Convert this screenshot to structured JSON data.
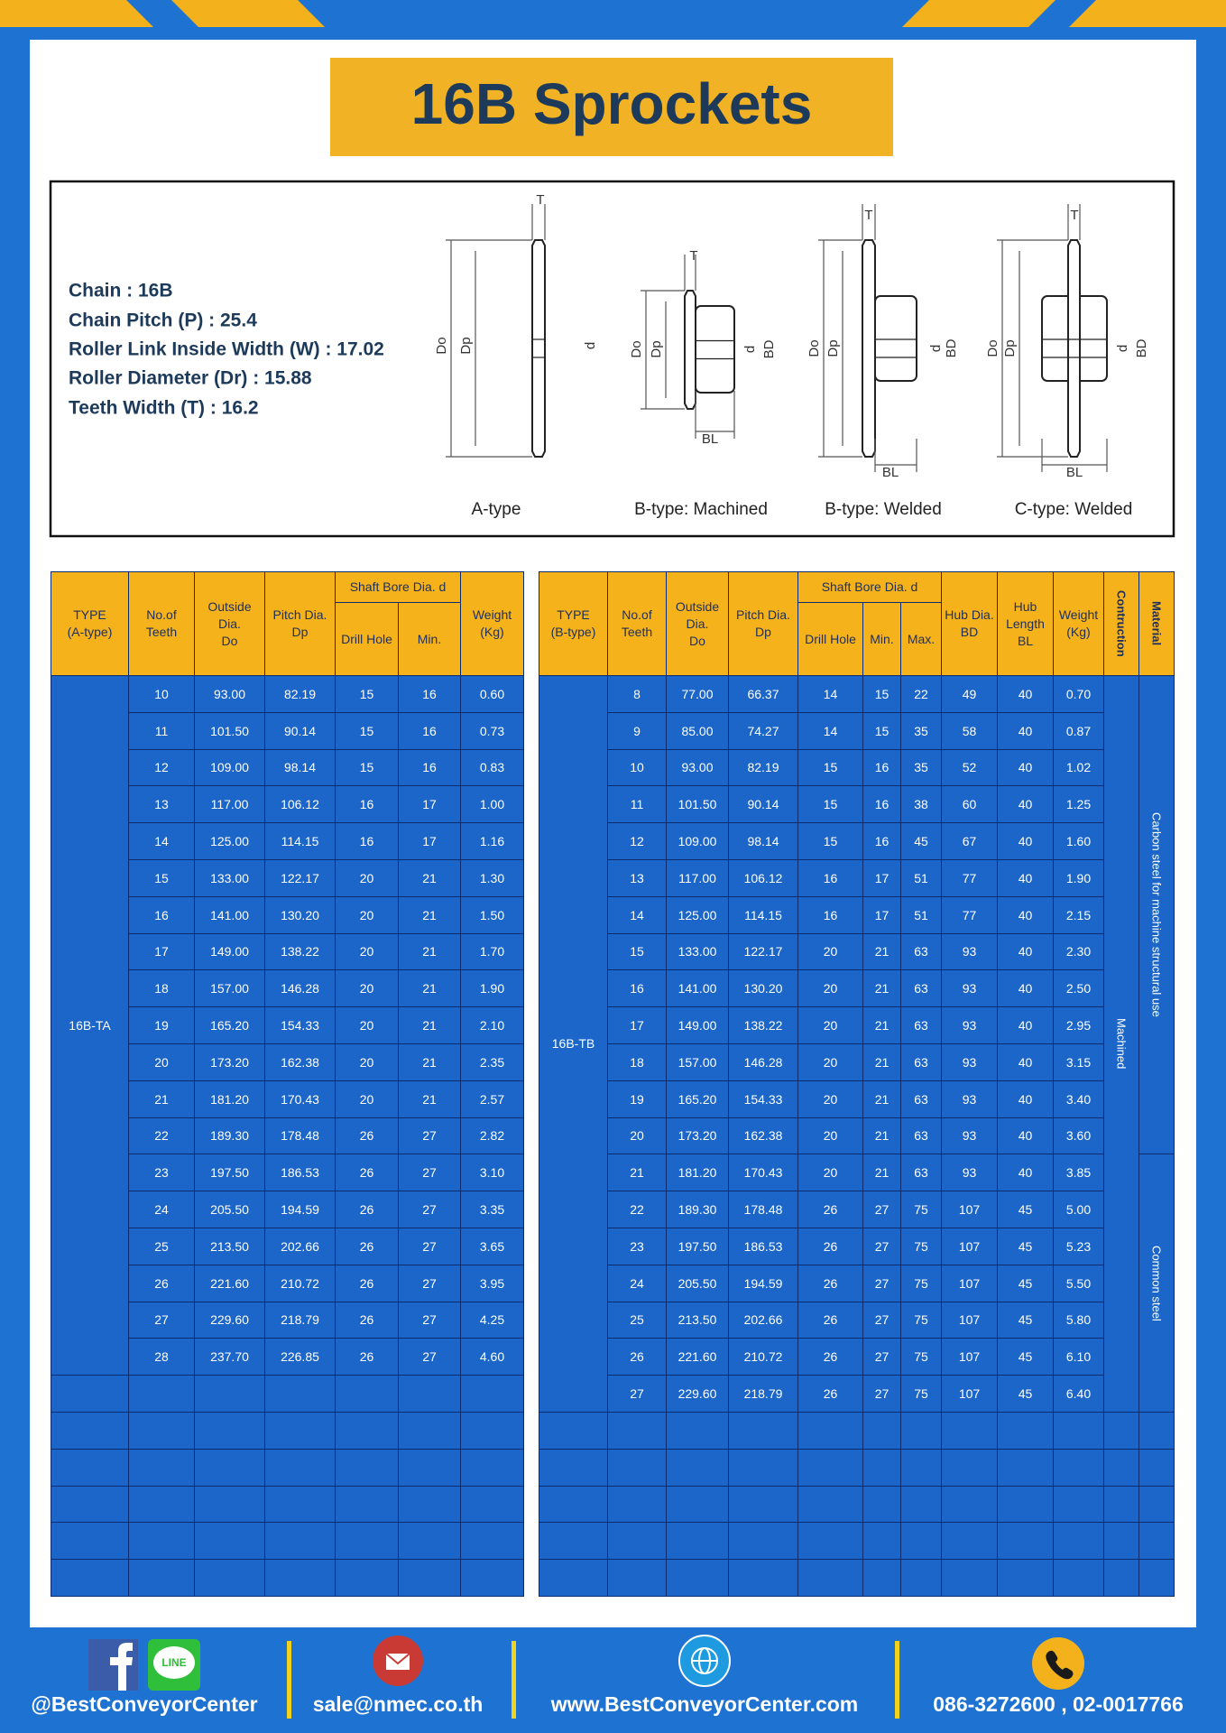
{
  "title": "16B Sprockets",
  "specs": [
    "Chain  :  16B",
    "Chain Pitch (P)  :  25.4",
    "Roller Link Inside Width (W)  :  17.02",
    "Roller Diameter (Dr)  : 15.88",
    "Teeth Width (T)  :  16.2"
  ],
  "diagrams": [
    {
      "caption": "A-type",
      "labels": [
        "T",
        "Do",
        "Dp",
        "d"
      ]
    },
    {
      "caption": "B-type: Machined",
      "labels": [
        "T",
        "Do",
        "Dp",
        "d",
        "BD",
        "BL"
      ]
    },
    {
      "caption": "B-type: Welded",
      "labels": [
        "T",
        "Do",
        "Dp",
        "d",
        "BD",
        "BL"
      ]
    },
    {
      "caption": "C-type: Welded",
      "labels": [
        "T",
        "Do",
        "Dp",
        "d",
        "BD",
        "BL"
      ]
    }
  ],
  "table_a": {
    "columns": [
      [
        "TYPE",
        "(A-type)"
      ],
      [
        "No.of",
        "Teeth"
      ],
      [
        "Outside",
        "Dia.",
        "Do"
      ],
      [
        "Pitch Dia.",
        "Dp"
      ],
      [
        "Drill Hole"
      ],
      [
        "Min."
      ],
      [
        "Weight",
        "(Kg)"
      ]
    ],
    "group": "Shaft Bore Dia. d",
    "type": "16B-TA",
    "rows": [
      [
        "10",
        "93.00",
        "82.19",
        "15",
        "16",
        "0.60"
      ],
      [
        "11",
        "101.50",
        "90.14",
        "15",
        "16",
        "0.73"
      ],
      [
        "12",
        "109.00",
        "98.14",
        "15",
        "16",
        "0.83"
      ],
      [
        "13",
        "117.00",
        "106.12",
        "16",
        "17",
        "1.00"
      ],
      [
        "14",
        "125.00",
        "114.15",
        "16",
        "17",
        "1.16"
      ],
      [
        "15",
        "133.00",
        "122.17",
        "20",
        "21",
        "1.30"
      ],
      [
        "16",
        "141.00",
        "130.20",
        "20",
        "21",
        "1.50"
      ],
      [
        "17",
        "149.00",
        "138.22",
        "20",
        "21",
        "1.70"
      ],
      [
        "18",
        "157.00",
        "146.28",
        "20",
        "21",
        "1.90"
      ],
      [
        "19",
        "165.20",
        "154.33",
        "20",
        "21",
        "2.10"
      ],
      [
        "20",
        "173.20",
        "162.38",
        "20",
        "21",
        "2.35"
      ],
      [
        "21",
        "181.20",
        "170.43",
        "20",
        "21",
        "2.57"
      ],
      [
        "22",
        "189.30",
        "178.48",
        "26",
        "27",
        "2.82"
      ],
      [
        "23",
        "197.50",
        "186.53",
        "26",
        "27",
        "3.10"
      ],
      [
        "24",
        "205.50",
        "194.59",
        "26",
        "27",
        "3.35"
      ],
      [
        "25",
        "213.50",
        "202.66",
        "26",
        "27",
        "3.65"
      ],
      [
        "26",
        "221.60",
        "210.72",
        "26",
        "27",
        "3.95"
      ],
      [
        "27",
        "229.60",
        "218.79",
        "26",
        "27",
        "4.25"
      ],
      [
        "28",
        "237.70",
        "226.85",
        "26",
        "27",
        "4.60"
      ]
    ]
  },
  "table_b": {
    "columns": [
      [
        "TYPE",
        "(B-type)"
      ],
      [
        "No.of",
        "Teeth"
      ],
      [
        "Outside",
        "Dia.",
        "Do"
      ],
      [
        "Pitch Dia.",
        "Dp"
      ],
      [
        "Drill Hole"
      ],
      [
        "Min."
      ],
      [
        "Max."
      ],
      [
        "Hub Dia.",
        "BD"
      ],
      [
        "Hub",
        "Length",
        "BL"
      ],
      [
        "Weight",
        "(Kg)"
      ],
      [
        "Contruction"
      ],
      [
        "Material"
      ]
    ],
    "group": "Shaft Bore Dia. d",
    "type": "16B-TB",
    "construction": "Machined",
    "materials": [
      "Carbon steel for machine structural use",
      "Common steel"
    ],
    "rows": [
      [
        "8",
        "77.00",
        "66.37",
        "14",
        "15",
        "22",
        "49",
        "40",
        "0.70"
      ],
      [
        "9",
        "85.00",
        "74.27",
        "14",
        "15",
        "35",
        "58",
        "40",
        "0.87"
      ],
      [
        "10",
        "93.00",
        "82.19",
        "15",
        "16",
        "35",
        "52",
        "40",
        "1.02"
      ],
      [
        "11",
        "101.50",
        "90.14",
        "15",
        "16",
        "38",
        "60",
        "40",
        "1.25"
      ],
      [
        "12",
        "109.00",
        "98.14",
        "15",
        "16",
        "45",
        "67",
        "40",
        "1.60"
      ],
      [
        "13",
        "117.00",
        "106.12",
        "16",
        "17",
        "51",
        "77",
        "40",
        "1.90"
      ],
      [
        "14",
        "125.00",
        "114.15",
        "16",
        "17",
        "51",
        "77",
        "40",
        "2.15"
      ],
      [
        "15",
        "133.00",
        "122.17",
        "20",
        "21",
        "63",
        "93",
        "40",
        "2.30"
      ],
      [
        "16",
        "141.00",
        "130.20",
        "20",
        "21",
        "63",
        "93",
        "40",
        "2.50"
      ],
      [
        "17",
        "149.00",
        "138.22",
        "20",
        "21",
        "63",
        "93",
        "40",
        "2.95"
      ],
      [
        "18",
        "157.00",
        "146.28",
        "20",
        "21",
        "63",
        "93",
        "40",
        "3.15"
      ],
      [
        "19",
        "165.20",
        "154.33",
        "20",
        "21",
        "63",
        "93",
        "40",
        "3.40"
      ],
      [
        "20",
        "173.20",
        "162.38",
        "20",
        "21",
        "63",
        "93",
        "40",
        "3.60"
      ],
      [
        "21",
        "181.20",
        "170.43",
        "20",
        "21",
        "63",
        "93",
        "40",
        "3.85"
      ],
      [
        "22",
        "189.30",
        "178.48",
        "26",
        "27",
        "75",
        "107",
        "45",
        "5.00"
      ],
      [
        "23",
        "197.50",
        "186.53",
        "26",
        "27",
        "75",
        "107",
        "45",
        "5.23"
      ],
      [
        "24",
        "205.50",
        "194.59",
        "26",
        "27",
        "75",
        "107",
        "45",
        "5.50"
      ],
      [
        "25",
        "213.50",
        "202.66",
        "26",
        "27",
        "75",
        "107",
        "45",
        "5.80"
      ],
      [
        "26",
        "221.60",
        "210.72",
        "26",
        "27",
        "75",
        "107",
        "45",
        "6.10"
      ],
      [
        "27",
        "229.60",
        "218.79",
        "26",
        "27",
        "75",
        "107",
        "45",
        "6.40"
      ]
    ]
  },
  "footer": {
    "line_icon": "LINE",
    "social": "@BestConveyorCenter",
    "email": "sale@nmec.co.th",
    "website": "www.BestConveyorCenter.com",
    "phone": "086-3272600 , 02-0017766"
  }
}
